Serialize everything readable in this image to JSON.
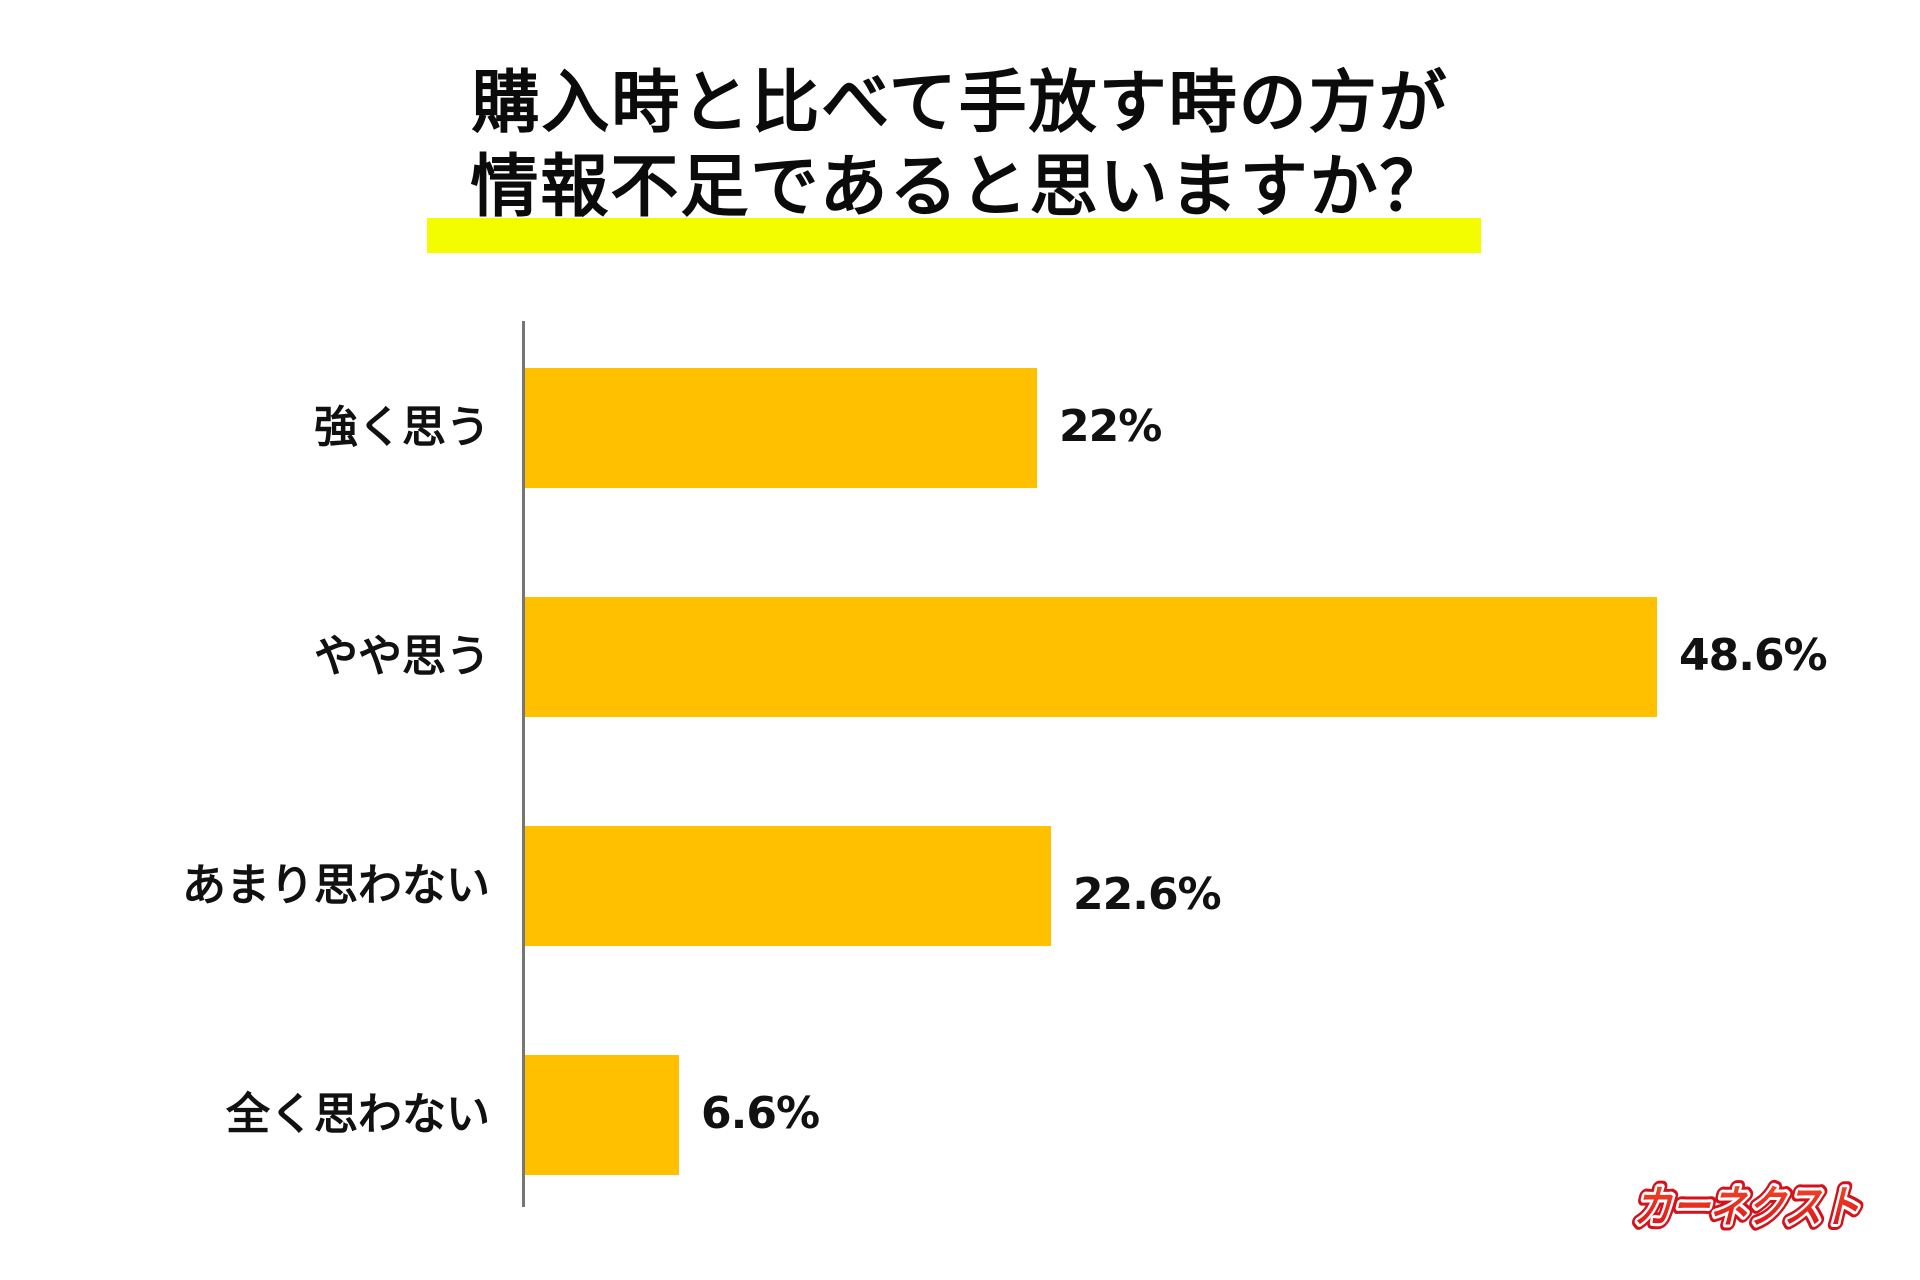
{
  "title": {
    "line1": "購入時と比べて手放す時の方が",
    "line2": "情報不足であると思いますか？",
    "highlight_color": "#F4FC00"
  },
  "chart_data": {
    "type": "bar",
    "orientation": "horizontal",
    "title": "購入時と比べて手放す時の方が情報不足であると思いますか？",
    "categories": [
      "強く思う",
      "やや思う",
      "あまり思わない",
      "全く思わない"
    ],
    "values": [
      22,
      48.6,
      22.6,
      6.6
    ],
    "value_labels": [
      "22%",
      "48.6%",
      "22.6%",
      "6.6%"
    ],
    "unit": "%",
    "xlabel": "",
    "ylabel": "",
    "xlim": [
      0,
      50
    ],
    "grid": false,
    "legend": null,
    "bar_color": "#FFC000",
    "axis_color": "#767676"
  },
  "bars": [
    {
      "label": "強く思う",
      "value": 22,
      "value_label": "22%"
    },
    {
      "label": "やや思う",
      "value": 48.6,
      "value_label": "48.6%"
    },
    {
      "label": "あまり思わない",
      "value": 22.6,
      "value_label": "22.6%"
    },
    {
      "label": "全く思わない",
      "value": 6.6,
      "value_label": "6.6%"
    }
  ],
  "logo": {
    "text": "カーネクスト",
    "color_top": "#F03A1E",
    "color_bottom": "#D9101A"
  }
}
